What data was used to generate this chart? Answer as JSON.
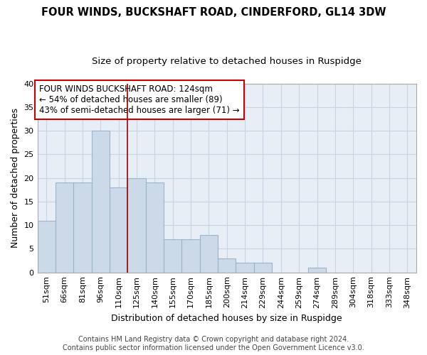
{
  "title": "FOUR WINDS, BUCKSHAFT ROAD, CINDERFORD, GL14 3DW",
  "subtitle": "Size of property relative to detached houses in Ruspidge",
  "xlabel": "Distribution of detached houses by size in Ruspidge",
  "ylabel": "Number of detached properties",
  "bar_labels": [
    "51sqm",
    "66sqm",
    "81sqm",
    "96sqm",
    "110sqm",
    "125sqm",
    "140sqm",
    "155sqm",
    "170sqm",
    "185sqm",
    "200sqm",
    "214sqm",
    "229sqm",
    "244sqm",
    "259sqm",
    "274sqm",
    "289sqm",
    "304sqm",
    "318sqm",
    "333sqm",
    "348sqm"
  ],
  "bar_values": [
    11,
    19,
    19,
    30,
    18,
    20,
    19,
    7,
    7,
    8,
    3,
    2,
    2,
    0,
    0,
    1,
    0,
    0,
    0,
    0,
    0
  ],
  "bar_color": "#ccd9e8",
  "bar_edge_color": "#9ab4cc",
  "grid_color": "#c8d4e4",
  "bg_color": "#e8eef6",
  "red_line_index": 5,
  "annotation_line1": "FOUR WINDS BUCKSHAFT ROAD: 124sqm",
  "annotation_line2": "← 54% of detached houses are smaller (89)",
  "annotation_line3": "43% of semi-detached houses are larger (71) →",
  "footer_line1": "Contains HM Land Registry data © Crown copyright and database right 2024.",
  "footer_line2": "Contains public sector information licensed under the Open Government Licence v3.0.",
  "ylim": [
    0,
    40
  ],
  "yticks": [
    0,
    5,
    10,
    15,
    20,
    25,
    30,
    35,
    40
  ],
  "title_fontsize": 10.5,
  "subtitle_fontsize": 9.5,
  "axis_label_fontsize": 9,
  "tick_fontsize": 8,
  "annotation_fontsize": 8.5,
  "footer_fontsize": 7
}
